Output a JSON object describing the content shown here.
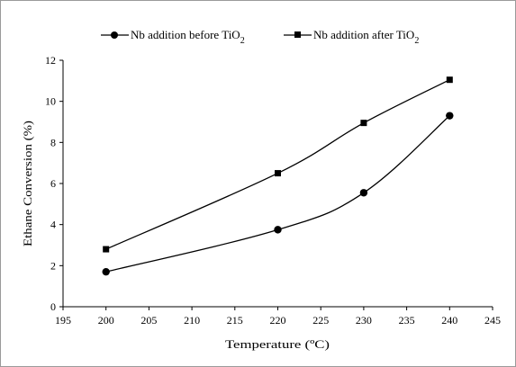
{
  "chart_data": {
    "type": "line",
    "xlabel": "Temperature (ºC)",
    "ylabel": "Ethane Conversion (%)",
    "xlim": [
      195,
      245
    ],
    "ylim": [
      0,
      12
    ],
    "xticks": [
      "195",
      "200",
      "205",
      "210",
      "215",
      "220",
      "225",
      "230",
      "235",
      "240",
      "245"
    ],
    "yticks": [
      "0",
      "2",
      "4",
      "6",
      "8",
      "10",
      "12"
    ],
    "grid": false,
    "legend_position": "top",
    "line_color": "#000000",
    "series": [
      {
        "label_main": "Nb addition before TiO",
        "label_sub": "2",
        "marker": "circle",
        "x": [
          200,
          220,
          230,
          240
        ],
        "y": [
          1.7,
          3.75,
          5.55,
          9.3
        ]
      },
      {
        "label_main": "Nb addition after TiO",
        "label_sub": "2",
        "marker": "square",
        "x": [
          200,
          220,
          230,
          240
        ],
        "y": [
          2.8,
          6.5,
          8.95,
          11.05
        ]
      }
    ]
  }
}
